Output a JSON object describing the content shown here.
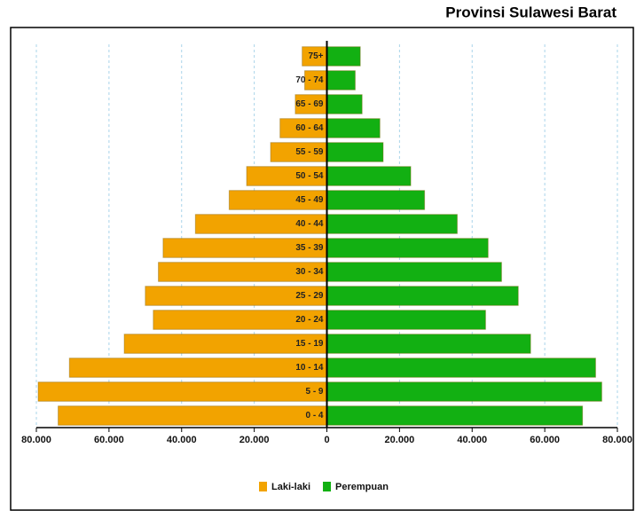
{
  "chart_data": {
    "type": "pyramid",
    "title": "Provinsi Sulawesi Barat",
    "categories": [
      "0 - 4",
      "5 - 9",
      "10 - 14",
      "15 - 19",
      "20 - 24",
      "25 - 29",
      "30 - 34",
      "35 - 39",
      "40 - 44",
      "45 - 49",
      "50 - 54",
      "55 - 59",
      "60 - 64",
      "65 - 69",
      "70 - 74",
      "75+"
    ],
    "series": [
      {
        "name": "Laki-laki",
        "color": "#f2a300",
        "values": [
          -74000,
          -79500,
          -70900,
          -55800,
          -47800,
          -50000,
          -46400,
          -45100,
          -36200,
          -26900,
          -22100,
          -15500,
          -12900,
          -8700,
          -6100,
          -6800
        ]
      },
      {
        "name": "Perempuan",
        "color": "#12b012",
        "values": [
          70400,
          75700,
          74000,
          56100,
          43700,
          52700,
          48100,
          44400,
          35900,
          26900,
          23100,
          15500,
          14600,
          9700,
          7800,
          9200
        ]
      }
    ],
    "xlim": [
      -80000,
      80000
    ],
    "xticks": [
      {
        "value": -80000,
        "label": "80.000"
      },
      {
        "value": -60000,
        "label": "60.000"
      },
      {
        "value": -40000,
        "label": "40.000"
      },
      {
        "value": -20000,
        "label": "20.000"
      },
      0,
      {
        "value": 20000,
        "label": "20.000"
      },
      {
        "value": 40000,
        "label": "40.000"
      },
      {
        "value": 60000,
        "label": "60.000"
      },
      {
        "value": 80000,
        "label": "80.000"
      }
    ],
    "grid": true
  }
}
